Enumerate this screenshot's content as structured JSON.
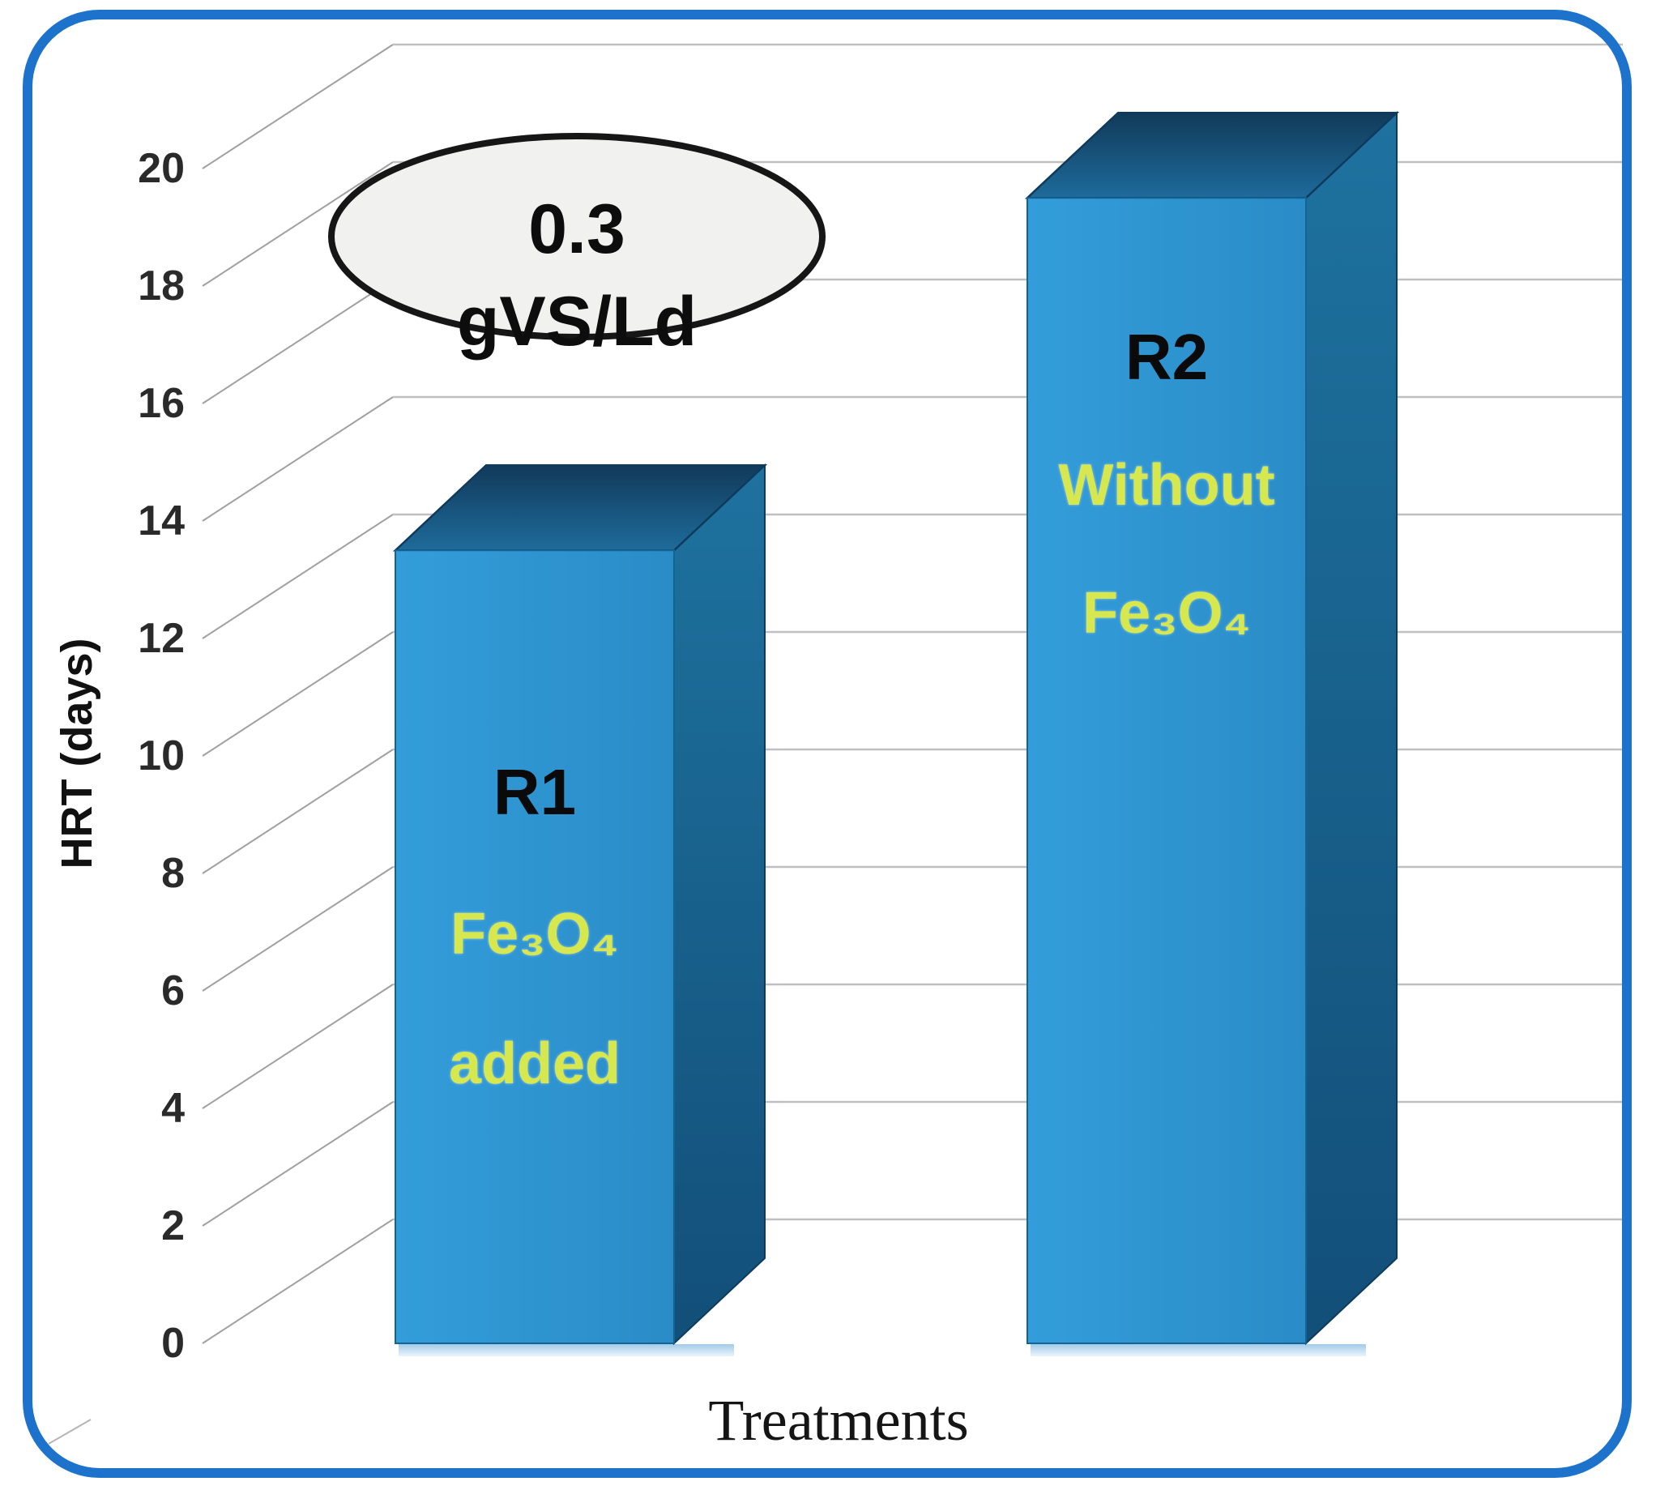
{
  "figure": {
    "frame_color": "#1d72cc",
    "background": "#ffffff"
  },
  "chart_data": {
    "type": "bar",
    "projection": "3d",
    "title": "",
    "xlabel": "Treatments",
    "ylabel": "HRT (days)",
    "ylim": [
      0,
      20
    ],
    "ytick_step": 2,
    "yticks": [
      20,
      18,
      16,
      14,
      12,
      10,
      8,
      6,
      4,
      2,
      0
    ],
    "categories": [
      "R1",
      "R2"
    ],
    "values": [
      13.5,
      19.5
    ],
    "grid": true,
    "legend": false,
    "bars": [
      {
        "label": "R1",
        "sub1": "Fe₃O₄",
        "sub2": "added",
        "value": 13.5
      },
      {
        "label": "R2",
        "sub1": "Without",
        "sub2": "Fe₃O₄",
        "value": 19.5
      }
    ],
    "annotation": {
      "line1": "0.3",
      "line2": "gVS/Ld"
    },
    "colors": {
      "bar_front": "#2e96d4",
      "bar_side": "#15608f",
      "bar_top": "#1a5f8e",
      "bar_edge": "#0e3a5c",
      "accent_text": "#d7e74e",
      "grid_line": "#c0c0c0",
      "diag_line": "#a0a0a0",
      "frame": "#1d72cc"
    }
  }
}
